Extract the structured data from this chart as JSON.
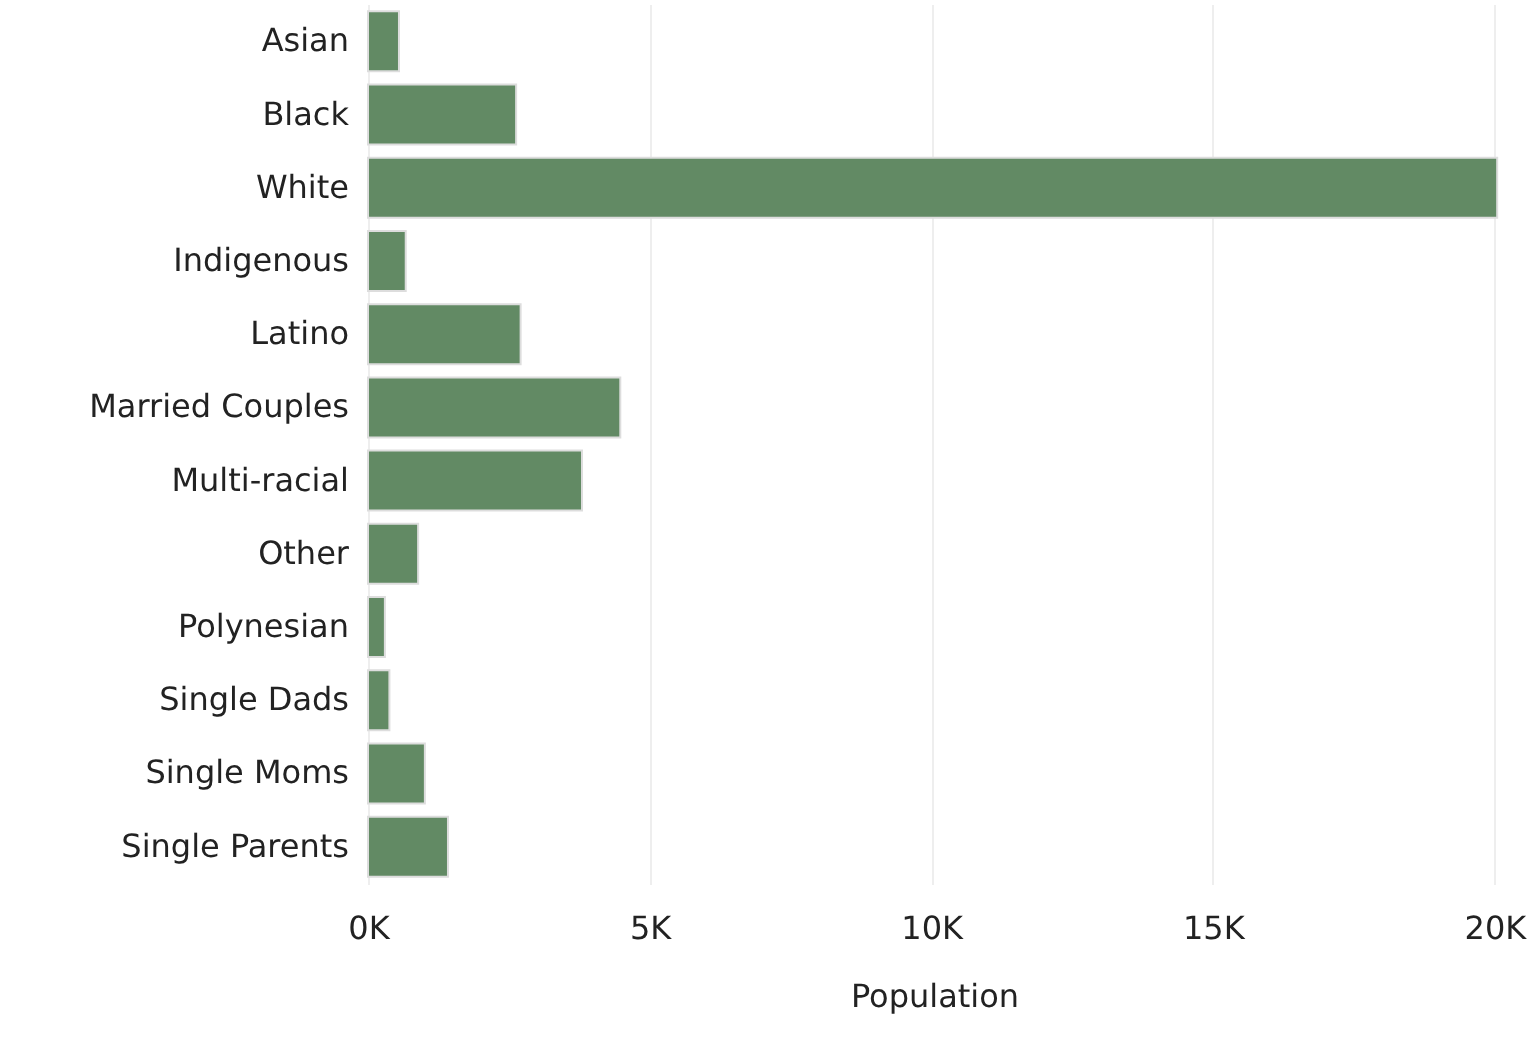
{
  "chart_data": {
    "type": "bar",
    "orientation": "horizontal",
    "xlabel": "Population",
    "categories": [
      "Asian",
      "Black",
      "White",
      "Indigenous",
      "Latino",
      "Married Couples",
      "Multi-racial",
      "Other",
      "Polynesian",
      "Single Dads",
      "Single Moms",
      "Single Parents"
    ],
    "values": [
      550,
      2630,
      20050,
      670,
      2710,
      4480,
      3800,
      890,
      300,
      380,
      1010,
      1420
    ],
    "color": "#628a64",
    "xlim": [
      0,
      20100
    ],
    "xticks": [
      {
        "value": 0,
        "label": "0K"
      },
      {
        "value": 5000,
        "label": "5K"
      },
      {
        "value": 10000,
        "label": "10K"
      },
      {
        "value": 15000,
        "label": "15K"
      },
      {
        "value": 20000,
        "label": "20K"
      }
    ],
    "grid": "x"
  }
}
